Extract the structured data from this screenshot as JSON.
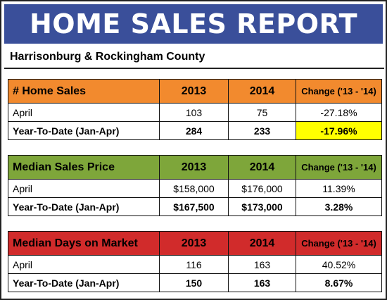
{
  "title": "HOME SALES REPORT",
  "subtitle": "Harrisonburg & Rockingham County",
  "colors": {
    "banner": "#3a4f9a",
    "orange": "#f28a2e",
    "green": "#7ea63a",
    "red": "#d12b2b",
    "highlight": "#ffff00"
  },
  "tables": [
    {
      "header": [
        "# Home Sales",
        "2013",
        "2014",
        "Change ('13 - '14)"
      ],
      "rows": [
        [
          "April",
          "103",
          "75",
          "-27.18%"
        ],
        [
          "Year-To-Date (Jan-Apr)",
          "284",
          "233",
          "-17.96%"
        ]
      ]
    },
    {
      "header": [
        "Median Sales Price",
        "2013",
        "2014",
        "Change ('13 - '14)"
      ],
      "rows": [
        [
          "April",
          "$158,000",
          "$176,000",
          "11.39%"
        ],
        [
          "Year-To-Date (Jan-Apr)",
          "$167,500",
          "$173,000",
          "3.28%"
        ]
      ]
    },
    {
      "header": [
        "Median Days on Market",
        "2013",
        "2014",
        "Change ('13 - '14)"
      ],
      "rows": [
        [
          "April",
          "116",
          "163",
          "40.52%"
        ],
        [
          "Year-To-Date (Jan-Apr)",
          "150",
          "163",
          "8.67%"
        ]
      ]
    }
  ]
}
